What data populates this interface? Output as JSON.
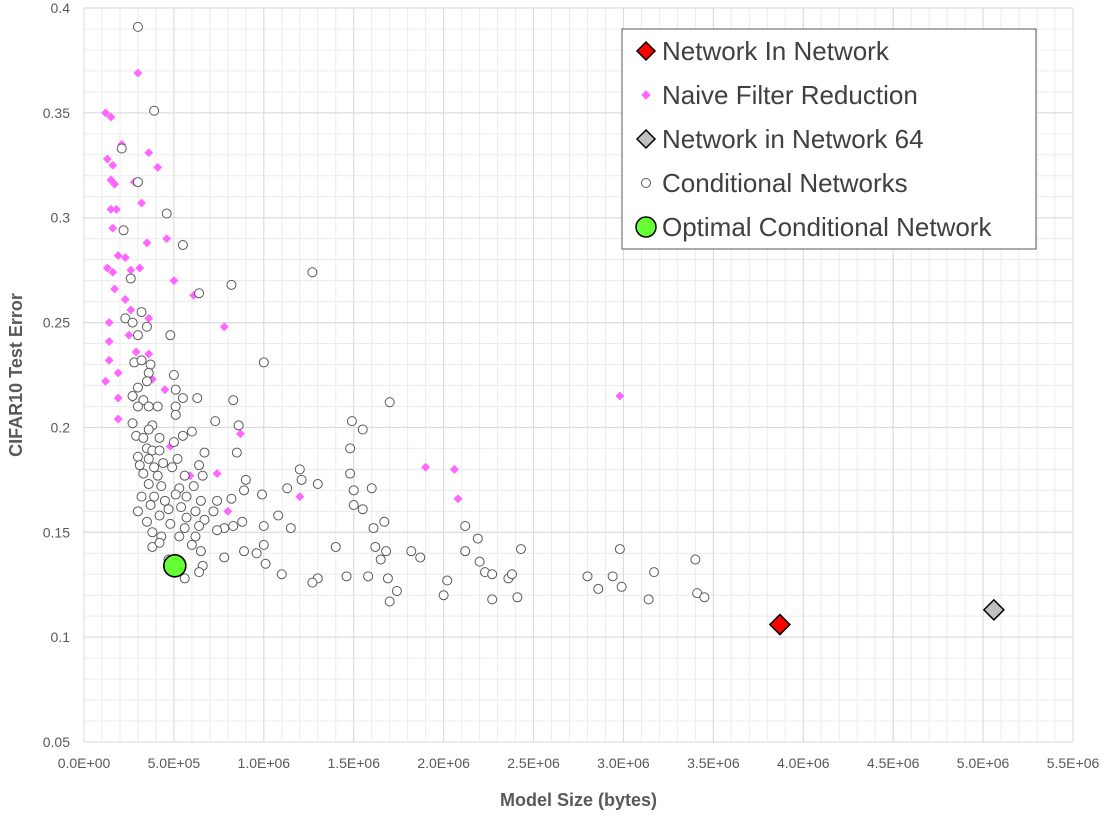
{
  "chart_data": {
    "type": "scatter",
    "xlabel": "Model Size (bytes)",
    "ylabel": "CIFAR10 Test Error",
    "xlim": [
      0,
      5500000
    ],
    "ylim": [
      0.05,
      0.4
    ],
    "x_ticks": [
      0,
      500000,
      1000000,
      1500000,
      2000000,
      2500000,
      3000000,
      3500000,
      4000000,
      4500000,
      5000000,
      5500000
    ],
    "x_tick_labels": [
      "0.0E+00",
      "5.0E+05",
      "1.0E+06",
      "1.5E+06",
      "2.0E+06",
      "2.5E+06",
      "3.0E+06",
      "3.5E+06",
      "4.0E+06",
      "4.5E+06",
      "5.0E+06",
      "5.5E+06"
    ],
    "y_ticks": [
      0.05,
      0.1,
      0.15,
      0.2,
      0.25,
      0.3,
      0.35,
      0.4
    ],
    "y_tick_labels": [
      "0.05",
      "0.1",
      "0.15",
      "0.2",
      "0.25",
      "0.3",
      "0.35",
      "0.4"
    ],
    "grid": true,
    "legend_position": "top-right",
    "series": [
      {
        "name": "Network In Network",
        "marker": "diamond",
        "color": "#ff0000",
        "edge": "#000000",
        "points": [
          [
            3870000,
            0.106
          ]
        ]
      },
      {
        "name": "Naive Filter Reduction",
        "marker": "small-diamond",
        "color": "#ff66ff",
        "edge": "#ff66ff",
        "points": [
          [
            120000,
            0.35
          ],
          [
            150000,
            0.348
          ],
          [
            300000,
            0.369
          ],
          [
            210000,
            0.335
          ],
          [
            360000,
            0.331
          ],
          [
            410000,
            0.324
          ],
          [
            130000,
            0.328
          ],
          [
            160000,
            0.325
          ],
          [
            150000,
            0.318
          ],
          [
            170000,
            0.316
          ],
          [
            280000,
            0.317
          ],
          [
            180000,
            0.304
          ],
          [
            150000,
            0.304
          ],
          [
            320000,
            0.307
          ],
          [
            460000,
            0.29
          ],
          [
            160000,
            0.295
          ],
          [
            350000,
            0.288
          ],
          [
            190000,
            0.282
          ],
          [
            230000,
            0.281
          ],
          [
            130000,
            0.276
          ],
          [
            160000,
            0.274
          ],
          [
            310000,
            0.276
          ],
          [
            260000,
            0.275
          ],
          [
            500000,
            0.27
          ],
          [
            170000,
            0.266
          ],
          [
            610000,
            0.263
          ],
          [
            230000,
            0.261
          ],
          [
            260000,
            0.256
          ],
          [
            360000,
            0.252
          ],
          [
            140000,
            0.25
          ],
          [
            780000,
            0.248
          ],
          [
            250000,
            0.244
          ],
          [
            140000,
            0.241
          ],
          [
            290000,
            0.236
          ],
          [
            360000,
            0.235
          ],
          [
            140000,
            0.232
          ],
          [
            190000,
            0.226
          ],
          [
            380000,
            0.223
          ],
          [
            120000,
            0.222
          ],
          [
            450000,
            0.218
          ],
          [
            190000,
            0.214
          ],
          [
            270000,
            0.214
          ],
          [
            190000,
            0.204
          ],
          [
            870000,
            0.197
          ],
          [
            480000,
            0.191
          ],
          [
            2980000,
            0.215
          ],
          [
            1900000,
            0.181
          ],
          [
            2060000,
            0.18
          ],
          [
            590000,
            0.177
          ],
          [
            740000,
            0.178
          ],
          [
            1200000,
            0.167
          ],
          [
            2080000,
            0.166
          ],
          [
            800000,
            0.16
          ]
        ]
      },
      {
        "name": "Network in Network 64",
        "marker": "diamond",
        "color": "#c0c0c0",
        "edge": "#000000",
        "points": [
          [
            5060000,
            0.113
          ]
        ]
      },
      {
        "name": "Conditional Networks",
        "marker": "circle",
        "color": "#ffffff",
        "edge": "#595959",
        "points": [
          [
            300000,
            0.391
          ],
          [
            390000,
            0.351
          ],
          [
            210000,
            0.333
          ],
          [
            300000,
            0.317
          ],
          [
            460000,
            0.302
          ],
          [
            220000,
            0.294
          ],
          [
            550000,
            0.287
          ],
          [
            1270000,
            0.274
          ],
          [
            820000,
            0.268
          ],
          [
            640000,
            0.264
          ],
          [
            260000,
            0.271
          ],
          [
            320000,
            0.255
          ],
          [
            230000,
            0.252
          ],
          [
            270000,
            0.25
          ],
          [
            350000,
            0.248
          ],
          [
            300000,
            0.244
          ],
          [
            480000,
            0.244
          ],
          [
            1000000,
            0.231
          ],
          [
            370000,
            0.23
          ],
          [
            280000,
            0.231
          ],
          [
            320000,
            0.232
          ],
          [
            360000,
            0.226
          ],
          [
            500000,
            0.225
          ],
          [
            350000,
            0.222
          ],
          [
            300000,
            0.219
          ],
          [
            510000,
            0.218
          ],
          [
            270000,
            0.215
          ],
          [
            330000,
            0.213
          ],
          [
            550000,
            0.214
          ],
          [
            630000,
            0.214
          ],
          [
            830000,
            0.213
          ],
          [
            1700000,
            0.212
          ],
          [
            300000,
            0.21
          ],
          [
            360000,
            0.21
          ],
          [
            410000,
            0.21
          ],
          [
            510000,
            0.21
          ],
          [
            510000,
            0.206
          ],
          [
            270000,
            0.202
          ],
          [
            380000,
            0.201
          ],
          [
            1490000,
            0.203
          ],
          [
            730000,
            0.203
          ],
          [
            860000,
            0.201
          ],
          [
            360000,
            0.199
          ],
          [
            1550000,
            0.199
          ],
          [
            290000,
            0.196
          ],
          [
            330000,
            0.195
          ],
          [
            420000,
            0.195
          ],
          [
            550000,
            0.196
          ],
          [
            600000,
            0.198
          ],
          [
            500000,
            0.193
          ],
          [
            350000,
            0.19
          ],
          [
            380000,
            0.189
          ],
          [
            420000,
            0.189
          ],
          [
            1480000,
            0.19
          ],
          [
            300000,
            0.186
          ],
          [
            360000,
            0.185
          ],
          [
            670000,
            0.188
          ],
          [
            850000,
            0.188
          ],
          [
            520000,
            0.185
          ],
          [
            440000,
            0.183
          ],
          [
            310000,
            0.182
          ],
          [
            390000,
            0.181
          ],
          [
            490000,
            0.181
          ],
          [
            640000,
            0.182
          ],
          [
            1200000,
            0.18
          ],
          [
            1480000,
            0.178
          ],
          [
            330000,
            0.178
          ],
          [
            410000,
            0.177
          ],
          [
            560000,
            0.177
          ],
          [
            660000,
            0.177
          ],
          [
            900000,
            0.175
          ],
          [
            1300000,
            0.173
          ],
          [
            1210000,
            0.175
          ],
          [
            360000,
            0.173
          ],
          [
            430000,
            0.172
          ],
          [
            530000,
            0.171
          ],
          [
            610000,
            0.172
          ],
          [
            1600000,
            0.171
          ],
          [
            1500000,
            0.17
          ],
          [
            890000,
            0.17
          ],
          [
            990000,
            0.168
          ],
          [
            1130000,
            0.171
          ],
          [
            320000,
            0.167
          ],
          [
            390000,
            0.167
          ],
          [
            450000,
            0.165
          ],
          [
            510000,
            0.168
          ],
          [
            570000,
            0.167
          ],
          [
            650000,
            0.165
          ],
          [
            740000,
            0.165
          ],
          [
            820000,
            0.166
          ],
          [
            370000,
            0.163
          ],
          [
            470000,
            0.161
          ],
          [
            540000,
            0.162
          ],
          [
            620000,
            0.16
          ],
          [
            720000,
            0.16
          ],
          [
            1500000,
            0.163
          ],
          [
            1550000,
            0.161
          ],
          [
            300000,
            0.16
          ],
          [
            420000,
            0.158
          ],
          [
            570000,
            0.157
          ],
          [
            670000,
            0.156
          ],
          [
            880000,
            0.155
          ],
          [
            1080000,
            0.158
          ],
          [
            1670000,
            0.155
          ],
          [
            2120000,
            0.153
          ],
          [
            350000,
            0.155
          ],
          [
            480000,
            0.154
          ],
          [
            560000,
            0.152
          ],
          [
            640000,
            0.153
          ],
          [
            780000,
            0.152
          ],
          [
            830000,
            0.153
          ],
          [
            1000000,
            0.153
          ],
          [
            1150000,
            0.152
          ],
          [
            1610000,
            0.152
          ],
          [
            2190000,
            0.147
          ],
          [
            380000,
            0.15
          ],
          [
            430000,
            0.148
          ],
          [
            530000,
            0.148
          ],
          [
            620000,
            0.148
          ],
          [
            740000,
            0.151
          ],
          [
            380000,
            0.143
          ],
          [
            420000,
            0.145
          ],
          [
            600000,
            0.144
          ],
          [
            650000,
            0.141
          ],
          [
            890000,
            0.141
          ],
          [
            960000,
            0.14
          ],
          [
            1000000,
            0.144
          ],
          [
            1400000,
            0.143
          ],
          [
            1620000,
            0.143
          ],
          [
            1680000,
            0.141
          ],
          [
            1820000,
            0.141
          ],
          [
            2120000,
            0.141
          ],
          [
            2430000,
            0.142
          ],
          [
            2980000,
            0.142
          ],
          [
            3400000,
            0.137
          ],
          [
            1650000,
            0.137
          ],
          [
            1870000,
            0.138
          ],
          [
            2200000,
            0.136
          ],
          [
            780000,
            0.138
          ],
          [
            1010000,
            0.135
          ],
          [
            470000,
            0.137
          ],
          [
            660000,
            0.134
          ],
          [
            640000,
            0.131
          ],
          [
            2230000,
            0.131
          ],
          [
            2270000,
            0.13
          ],
          [
            3170000,
            0.131
          ],
          [
            1100000,
            0.13
          ],
          [
            1300000,
            0.128
          ],
          [
            1270000,
            0.126
          ],
          [
            1460000,
            0.129
          ],
          [
            1580000,
            0.129
          ],
          [
            1690000,
            0.128
          ],
          [
            2020000,
            0.127
          ],
          [
            2360000,
            0.128
          ],
          [
            2380000,
            0.13
          ],
          [
            2800000,
            0.129
          ],
          [
            2940000,
            0.129
          ],
          [
            560000,
            0.128
          ],
          [
            2860000,
            0.123
          ],
          [
            2990000,
            0.124
          ],
          [
            1740000,
            0.122
          ],
          [
            2000000,
            0.12
          ],
          [
            2270000,
            0.118
          ],
          [
            2410000,
            0.119
          ],
          [
            3140000,
            0.118
          ],
          [
            3410000,
            0.121
          ],
          [
            3450000,
            0.119
          ],
          [
            1700000,
            0.117
          ]
        ]
      },
      {
        "name": "Optimal Conditional Network",
        "marker": "circle",
        "color": "#66ff33",
        "edge": "#000000",
        "points": [
          [
            505000,
            0.134
          ]
        ]
      }
    ]
  }
}
